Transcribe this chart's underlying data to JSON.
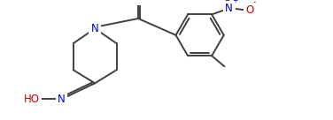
{
  "bg_color": "#ffffff",
  "line_color": "#404040",
  "atom_colors": {
    "N": "#0000cc",
    "O": "#cc0000",
    "Nplus": "#0000cc",
    "Ominus": "#cc0000"
  },
  "line_width": 1.4,
  "font_size": 8.5,
  "figsize": [
    3.76,
    1.36
  ],
  "dpi": 100,
  "xlim": [
    0.0,
    10.0
  ],
  "ylim": [
    0.0,
    3.6
  ]
}
